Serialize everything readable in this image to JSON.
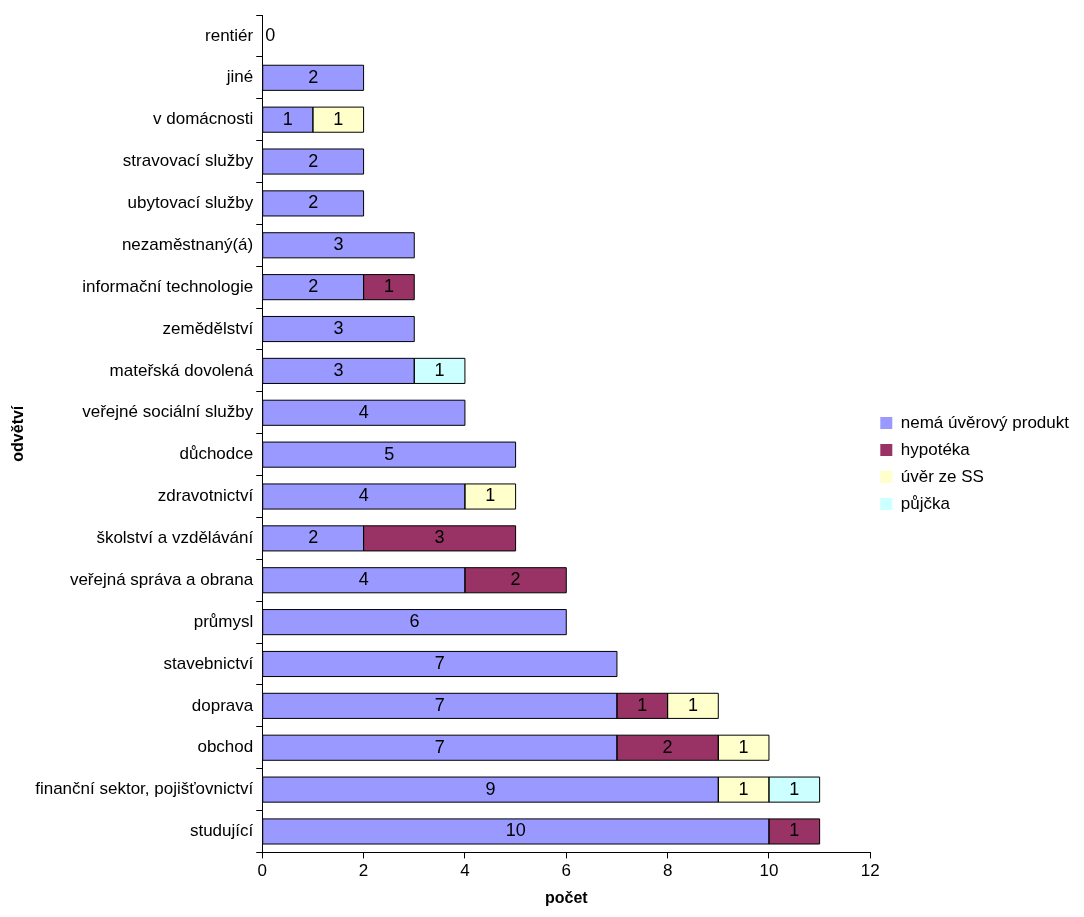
{
  "chart_data": {
    "type": "bar",
    "orientation": "horizontal",
    "stacked": true,
    "xlabel": "počet",
    "ylabel": "odvětví",
    "categories": [
      "rentiér",
      "jiné",
      "v domácnosti",
      "stravovací služby",
      "ubytovací služby",
      "nezaměstnaný(á)",
      "informační technologie",
      "zemědělství",
      "mateřská dovolená",
      "veřejné sociální služby",
      "důchodce",
      "zdravotnictví",
      "školství a vzdělávání",
      "veřejná správa a obrana",
      "průmysl",
      "stavebnictví",
      "doprava",
      "obchod",
      "finanční sektor, pojišťovnictví",
      "studující"
    ],
    "series": [
      {
        "name": "nemá úvěrový produkt",
        "color": "#9999ff",
        "values": [
          0,
          2,
          1,
          2,
          2,
          3,
          2,
          3,
          3,
          4,
          5,
          4,
          2,
          4,
          6,
          7,
          7,
          7,
          9,
          10
        ]
      },
      {
        "name": "hypotéka",
        "color": "#993366",
        "values": [
          null,
          null,
          null,
          null,
          null,
          null,
          1,
          null,
          null,
          null,
          null,
          null,
          3,
          2,
          null,
          null,
          1,
          2,
          null,
          1
        ]
      },
      {
        "name": "úvěr ze SS",
        "color": "#ffffcc",
        "values": [
          null,
          null,
          1,
          null,
          null,
          null,
          null,
          null,
          null,
          null,
          null,
          1,
          null,
          null,
          null,
          null,
          1,
          1,
          1,
          null
        ]
      },
      {
        "name": "půjčka",
        "color": "#ccffff",
        "values": [
          null,
          null,
          null,
          null,
          null,
          null,
          null,
          null,
          1,
          null,
          null,
          null,
          null,
          null,
          null,
          null,
          null,
          null,
          1,
          null
        ]
      }
    ],
    "xlim": [
      0,
      12
    ],
    "xticks": [
      0,
      2,
      4,
      6,
      8,
      10,
      12
    ],
    "grid": false,
    "legend": "right",
    "data_labels": true
  }
}
